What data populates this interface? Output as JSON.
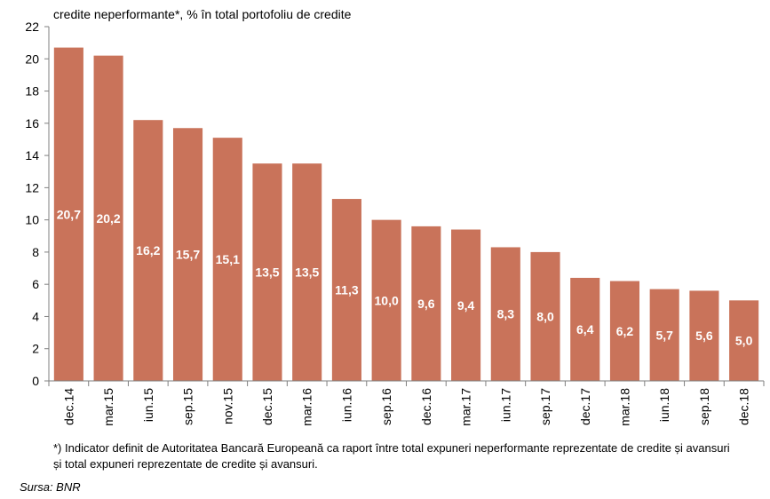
{
  "chart_data": {
    "type": "bar",
    "title": "",
    "ylabel": "credite neperformante*,  % în total portofoliu  de credite",
    "xlabel": "",
    "categories": [
      "dec.14",
      "mar.15",
      "iun.15",
      "sep.15",
      "nov.15",
      "dec.15",
      "mar.16",
      "iun.16",
      "sep.16",
      "dec.16",
      "mar.17",
      "iun.17",
      "sep.17",
      "dec.17",
      "mar.18",
      "iun.18",
      "sep.18",
      "dec.18"
    ],
    "values": [
      20.7,
      20.2,
      16.2,
      15.7,
      15.1,
      13.5,
      13.5,
      11.3,
      10.0,
      9.6,
      9.4,
      8.3,
      8.0,
      6.4,
      6.2,
      5.7,
      5.6,
      5.0
    ],
    "value_labels": [
      "20,7",
      "20,2",
      "16,2",
      "15,7",
      "15,1",
      "13,5",
      "13,5",
      "11,3",
      "10,0",
      "9,6",
      "9,4",
      "8,3",
      "8,0",
      "6,4",
      "6,2",
      "5,7",
      "5,6",
      "5,0"
    ],
    "ylim": [
      0,
      22
    ],
    "yticks": [
      "0",
      "2",
      "4",
      "6",
      "8",
      "10",
      "12",
      "14",
      "16",
      "18",
      "20",
      "22"
    ],
    "grid": false,
    "bar_color": "#C9735A"
  },
  "footnote": {
    "line1": "*) Indicator definit de Autoritatea Bancară Europeană ca raport între total expuneri neperformante reprezentate de credite și avansuri",
    "line2": "și total expuneri reprezentate de credite și avansuri."
  },
  "source": "Sursa:  BNR"
}
